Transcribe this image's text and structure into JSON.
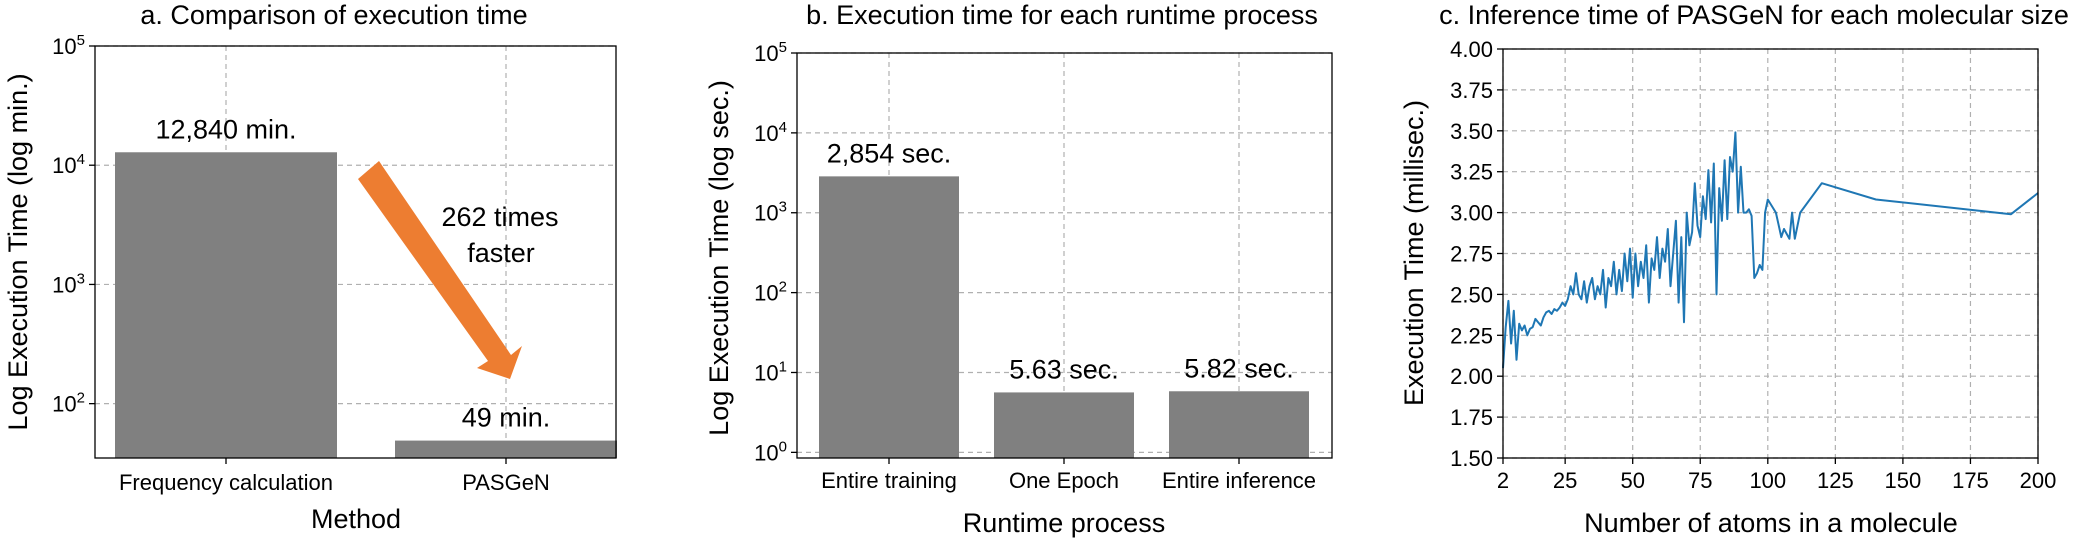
{
  "chart_data": [
    {
      "type": "bar",
      "title": "a. Comparison of execution time",
      "xlabel": "Method",
      "ylabel": "Log Execution Time (log min.)",
      "yscale": "log",
      "ylim": [
        35,
        100000
      ],
      "yticks": [
        100,
        1000,
        10000,
        100000
      ],
      "grid": true,
      "bar_color": "#808080",
      "categories": [
        "Frequency calculation",
        "PASGeN"
      ],
      "values": [
        12840,
        49
      ],
      "data_labels": [
        "12,840 min.",
        "49 min."
      ],
      "annotation": {
        "lines": [
          "262 times",
          "faster"
        ],
        "arrow_color": "#ED7D31"
      }
    },
    {
      "type": "bar",
      "title": "b. Execution time for each runtime process",
      "xlabel": "Runtime process",
      "ylabel": "Log Execution Time (log sec.)",
      "yscale": "log",
      "ylim": [
        0.85,
        100000
      ],
      "yticks": [
        1,
        10,
        100,
        1000,
        10000,
        100000
      ],
      "grid": true,
      "bar_color": "#808080",
      "categories": [
        "Entire training",
        "One Epoch",
        "Entire inference"
      ],
      "values": [
        2854,
        5.63,
        5.82
      ],
      "data_labels": [
        "2,854 sec.",
        "5.63 sec.",
        "5.82 sec."
      ]
    },
    {
      "type": "line",
      "title": "c. Inference time of PASGeN for each molecular size",
      "xlabel": "Number of atoms in a molecule",
      "ylabel": "Execution Time (millisec.)",
      "xlim": [
        2,
        200
      ],
      "ylim": [
        1.5,
        4.0
      ],
      "xticks": [
        2,
        25,
        50,
        75,
        100,
        125,
        150,
        175,
        200
      ],
      "yticks": [
        "1.50",
        "1.75",
        "2.00",
        "2.25",
        "2.50",
        "2.75",
        "3.00",
        "3.25",
        "3.50",
        "3.75",
        "4.00"
      ],
      "grid": true,
      "line_color": "#1F77B4",
      "x": [
        2,
        3,
        4,
        5,
        6,
        7,
        8,
        9,
        10,
        11,
        12,
        13,
        14,
        15,
        16,
        17,
        18,
        19,
        20,
        21,
        22,
        23,
        24,
        25,
        26,
        27,
        28,
        29,
        30,
        31,
        32,
        33,
        34,
        35,
        36,
        37,
        38,
        39,
        40,
        41,
        42,
        43,
        44,
        45,
        46,
        47,
        48,
        49,
        50,
        51,
        52,
        53,
        54,
        55,
        56,
        57,
        58,
        59,
        60,
        61,
        62,
        63,
        64,
        65,
        66,
        67,
        68,
        69,
        70,
        71,
        72,
        73,
        74,
        75,
        76,
        77,
        78,
        79,
        80,
        81,
        82,
        83,
        84,
        85,
        86,
        87,
        88,
        89,
        90,
        91,
        92,
        93,
        94,
        95,
        96,
        97,
        98,
        99,
        100,
        103,
        105,
        106,
        108,
        109,
        110,
        112,
        120,
        140,
        190,
        200
      ],
      "y": [
        2.05,
        2.3,
        2.46,
        2.2,
        2.4,
        2.1,
        2.32,
        2.28,
        2.31,
        2.25,
        2.29,
        2.3,
        2.35,
        2.33,
        2.31,
        2.36,
        2.39,
        2.4,
        2.38,
        2.41,
        2.4,
        2.42,
        2.45,
        2.43,
        2.47,
        2.55,
        2.5,
        2.63,
        2.5,
        2.47,
        2.58,
        2.45,
        2.55,
        2.6,
        2.47,
        2.55,
        2.5,
        2.65,
        2.42,
        2.6,
        2.55,
        2.7,
        2.5,
        2.65,
        2.52,
        2.75,
        2.58,
        2.78,
        2.48,
        2.75,
        2.55,
        2.7,
        2.6,
        2.8,
        2.45,
        2.72,
        2.65,
        2.85,
        2.6,
        2.78,
        2.7,
        2.9,
        2.55,
        2.75,
        2.95,
        2.45,
        2.85,
        2.33,
        3.0,
        2.8,
        2.88,
        3.18,
        2.92,
        2.85,
        3.1,
        2.96,
        3.26,
        2.94,
        3.3,
        2.5,
        3.15,
        2.95,
        3.32,
        2.96,
        3.34,
        3.25,
        3.49,
        3.0,
        3.28,
        3.0,
        3.0,
        3.02,
        2.98,
        2.6,
        2.63,
        2.68,
        2.65,
        3.0,
        3.08,
        3.0,
        2.85,
        2.9,
        2.84,
        3.0,
        2.84,
        3.0,
        3.18,
        3.08,
        2.99,
        3.12
      ]
    }
  ]
}
